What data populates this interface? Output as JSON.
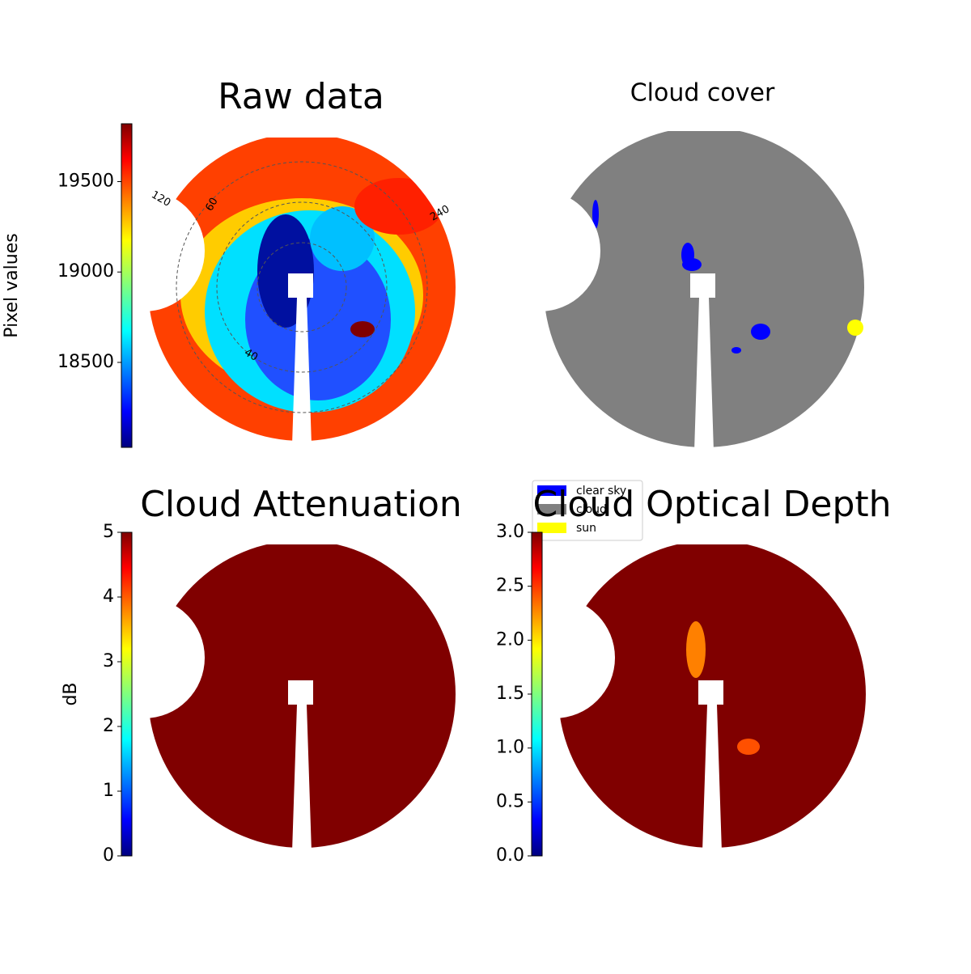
{
  "chart_data": [
    {
      "type": "image",
      "title": "Raw data",
      "colorbar": {
        "label": "Pixel values",
        "clim": [
          18030,
          19820
        ],
        "ticks": [
          18500,
          19000,
          19500
        ],
        "colormap": "jet"
      },
      "annotations": [
        "120",
        "60",
        "240",
        "40"
      ]
    },
    {
      "type": "image",
      "title": "Cloud cover",
      "legend": [
        {
          "name": "clear sky",
          "color": "#0000ff"
        },
        {
          "name": "cloud",
          "color": "#808080"
        },
        {
          "name": "sun",
          "color": "#ffff00"
        }
      ]
    },
    {
      "type": "image",
      "title": "Cloud Attenuation",
      "colorbar": {
        "label": "dB",
        "clim": [
          0,
          5
        ],
        "ticks": [
          0,
          1,
          2,
          3,
          4,
          5
        ],
        "colormap": "jet"
      }
    },
    {
      "type": "image",
      "title": "Cloud Optical Depth",
      "colorbar": {
        "clim": [
          0,
          3
        ],
        "ticks": [
          {
            "value": 0,
            "label": "0.0"
          },
          {
            "value": 0.5,
            "label": "0.5"
          },
          {
            "value": 1,
            "label": "1.0"
          },
          {
            "value": 1.5,
            "label": "1.5"
          },
          {
            "value": 2,
            "label": "2.0"
          },
          {
            "value": 2.5,
            "label": "2.5"
          },
          {
            "value": 3,
            "label": "3.0"
          }
        ],
        "colormap": "jet"
      }
    }
  ]
}
